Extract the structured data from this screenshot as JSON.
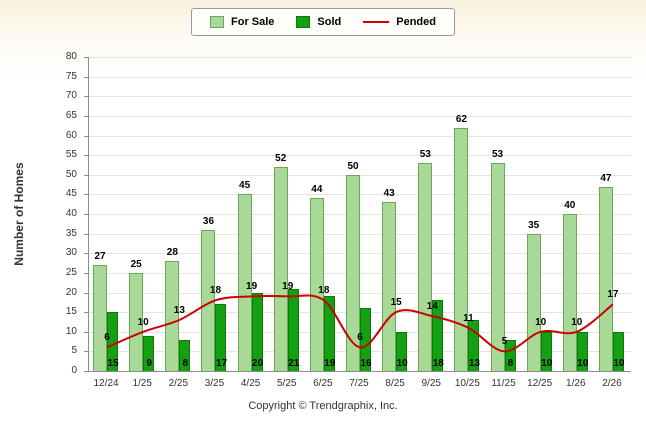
{
  "footer": "Copyright © Trendgraphix, Inc.",
  "chart_data": {
    "type": "bar",
    "title": "",
    "xlabel": "",
    "ylabel": "Number of Homes",
    "ylim": [
      0,
      80
    ],
    "ytick_step": 5,
    "grid": true,
    "legend_position": "top-center",
    "categories": [
      "12/24",
      "1/25",
      "2/25",
      "3/25",
      "4/25",
      "5/25",
      "6/25",
      "7/25",
      "8/25",
      "9/25",
      "10/25",
      "11/25",
      "12/25",
      "1/26",
      "2/26"
    ],
    "series": [
      {
        "name": "For Sale",
        "type": "bar",
        "color": "#a8d996",
        "border": "#6aa85a",
        "values": [
          27,
          25,
          28,
          36,
          45,
          52,
          44,
          50,
          43,
          53,
          62,
          53,
          35,
          40,
          47
        ]
      },
      {
        "name": "Sold",
        "type": "bar",
        "color": "#13a113",
        "border": "#0b7a0b",
        "values": [
          15,
          9,
          8,
          17,
          20,
          21,
          19,
          16,
          10,
          18,
          13,
          8,
          10,
          10,
          10
        ]
      },
      {
        "name": "Pended",
        "type": "line",
        "color": "#cc0000",
        "values": [
          6,
          10,
          13,
          18,
          19,
          19,
          18,
          6,
          15,
          14,
          11,
          5,
          10,
          10,
          17
        ]
      }
    ]
  }
}
